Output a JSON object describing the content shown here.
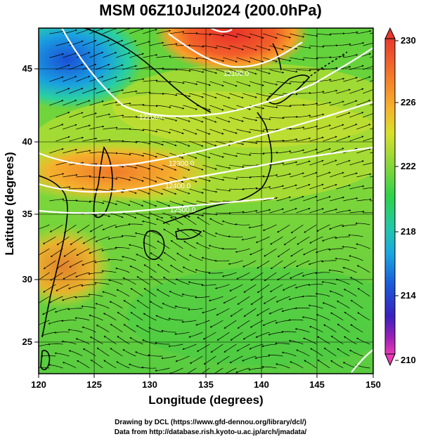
{
  "title": "MSM 06Z10Jul2024 (200.0hPa)",
  "axes": {
    "xlabel": "Longitude (degrees)",
    "ylabel": "Latitude  (degrees)",
    "x_ticks": [
      "120",
      "125",
      "130",
      "135",
      "140",
      "145",
      "150"
    ],
    "y_ticks": [
      "25",
      "30",
      "35",
      "40",
      "45"
    ],
    "x_range": [
      120,
      150
    ],
    "y_range": [
      22.4,
      47.6
    ]
  },
  "colorbar": {
    "ticks": [
      "230",
      "226",
      "222",
      "218",
      "214",
      "210"
    ],
    "range": [
      210,
      230
    ]
  },
  "contour_labels": [
    "12200.0",
    "12100.0",
    "12300.0",
    "12400.0",
    "12500.0"
  ],
  "credits": {
    "line1": "Drawing by DCL (https://www.gfd-dennou.org/library/dcl/)",
    "line2": "Data from http://database.rish.kyoto-u.ac.jp/arch/jmadata/"
  },
  "colors": {
    "hot": "#e83a2c",
    "warm": "#f7a02a",
    "mid": "#b8e02a",
    "cool": "#2ed24a",
    "cold": "#1a5ad8"
  }
}
